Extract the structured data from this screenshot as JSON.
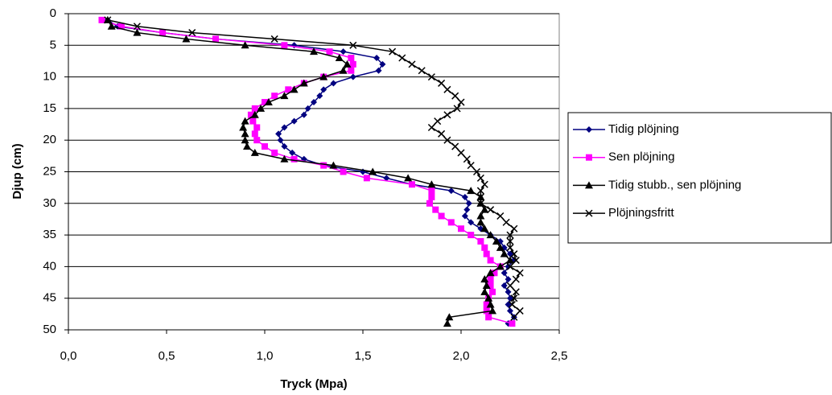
{
  "chart_data": {
    "type": "line",
    "x_label": "Tryck (Mpa)",
    "y_label": "Djup (cm)",
    "y": [
      1,
      2,
      3,
      4,
      5,
      6,
      7,
      8,
      9,
      10,
      11,
      12,
      13,
      14,
      15,
      16,
      17,
      18,
      19,
      20,
      21,
      22,
      23,
      24,
      25,
      26,
      27,
      28,
      29,
      30,
      31,
      32,
      33,
      34,
      35,
      36,
      37,
      38,
      39,
      40,
      41,
      42,
      43,
      44,
      45,
      46,
      47,
      48,
      49
    ],
    "series": [
      {
        "name": "Tidig plöjning",
        "color": "#000080",
        "marker": "diamond",
        "values": [
          0.2,
          0.25,
          0.48,
          0.75,
          1.15,
          1.4,
          1.57,
          1.6,
          1.58,
          1.45,
          1.35,
          1.3,
          1.28,
          1.25,
          1.22,
          1.2,
          1.15,
          1.1,
          1.07,
          1.08,
          1.1,
          1.14,
          1.2,
          1.3,
          1.5,
          1.62,
          1.75,
          1.95,
          2.02,
          2.04,
          2.03,
          2.02,
          2.05,
          2.1,
          2.15,
          2.2,
          2.22,
          2.25,
          2.27,
          2.24,
          2.22,
          2.24,
          2.22,
          2.24,
          2.25,
          2.24,
          2.25,
          2.27,
          2.24
        ]
      },
      {
        "name": "Sen plöjning",
        "color": "#ff00ff",
        "marker": "square",
        "values": [
          0.17,
          0.27,
          0.48,
          0.75,
          1.1,
          1.33,
          1.44,
          1.45,
          1.44,
          1.3,
          1.2,
          1.12,
          1.05,
          1.0,
          0.95,
          0.93,
          0.94,
          0.96,
          0.95,
          0.96,
          1.0,
          1.05,
          1.15,
          1.3,
          1.4,
          1.52,
          1.75,
          1.85,
          1.85,
          1.84,
          1.87,
          1.9,
          1.95,
          2.0,
          2.05,
          2.1,
          2.12,
          2.13,
          2.15,
          2.2,
          2.17,
          2.15,
          2.15,
          2.16,
          2.14,
          2.13,
          2.13,
          2.14,
          2.26
        ]
      },
      {
        "name": "Tidig stubb., sen plöjning",
        "color": "#000000",
        "marker": "triangle",
        "values": [
          0.2,
          0.22,
          0.35,
          0.6,
          0.9,
          1.25,
          1.38,
          1.42,
          1.4,
          1.3,
          1.2,
          1.15,
          1.1,
          1.02,
          0.98,
          0.95,
          0.9,
          0.89,
          0.9,
          0.9,
          0.91,
          0.95,
          1.1,
          1.35,
          1.55,
          1.73,
          1.85,
          2.05,
          2.1,
          2.1,
          2.12,
          2.1,
          2.1,
          2.12,
          2.15,
          2.18,
          2.2,
          2.22,
          2.25,
          2.2,
          2.15,
          2.12,
          2.13,
          2.12,
          2.14,
          2.15,
          2.16,
          1.94,
          1.93
        ]
      },
      {
        "name": "Plöjningsfritt",
        "color": "#000000",
        "marker": "cross",
        "values": [
          0.2,
          0.35,
          0.63,
          1.05,
          1.45,
          1.65,
          1.7,
          1.75,
          1.8,
          1.85,
          1.9,
          1.93,
          1.97,
          2.0,
          1.98,
          1.93,
          1.88,
          1.85,
          1.9,
          1.93,
          1.97,
          2.0,
          2.03,
          2.05,
          2.08,
          2.1,
          2.12,
          2.1,
          2.1,
          2.1,
          2.15,
          2.2,
          2.23,
          2.27,
          2.25,
          2.25,
          2.25,
          2.27,
          2.28,
          2.25,
          2.3,
          2.28,
          2.25,
          2.28,
          2.27,
          2.26,
          2.3,
          2.27,
          null
        ]
      }
    ],
    "xlim": [
      0,
      2.5
    ],
    "xticks": [
      {
        "value": 0,
        "label": "0,0"
      },
      {
        "value": 0.5,
        "label": "0,5"
      },
      {
        "value": 1,
        "label": "1,0"
      },
      {
        "value": 1.5,
        "label": "1,5"
      },
      {
        "value": 2,
        "label": "2,0"
      },
      {
        "value": 2.5,
        "label": "2,5"
      }
    ],
    "ylim": [
      0,
      50
    ],
    "y_reversed": true,
    "yticks": [
      0,
      5,
      10,
      15,
      20,
      25,
      30,
      35,
      40,
      45,
      50
    ],
    "grid": true,
    "legend": "right"
  }
}
